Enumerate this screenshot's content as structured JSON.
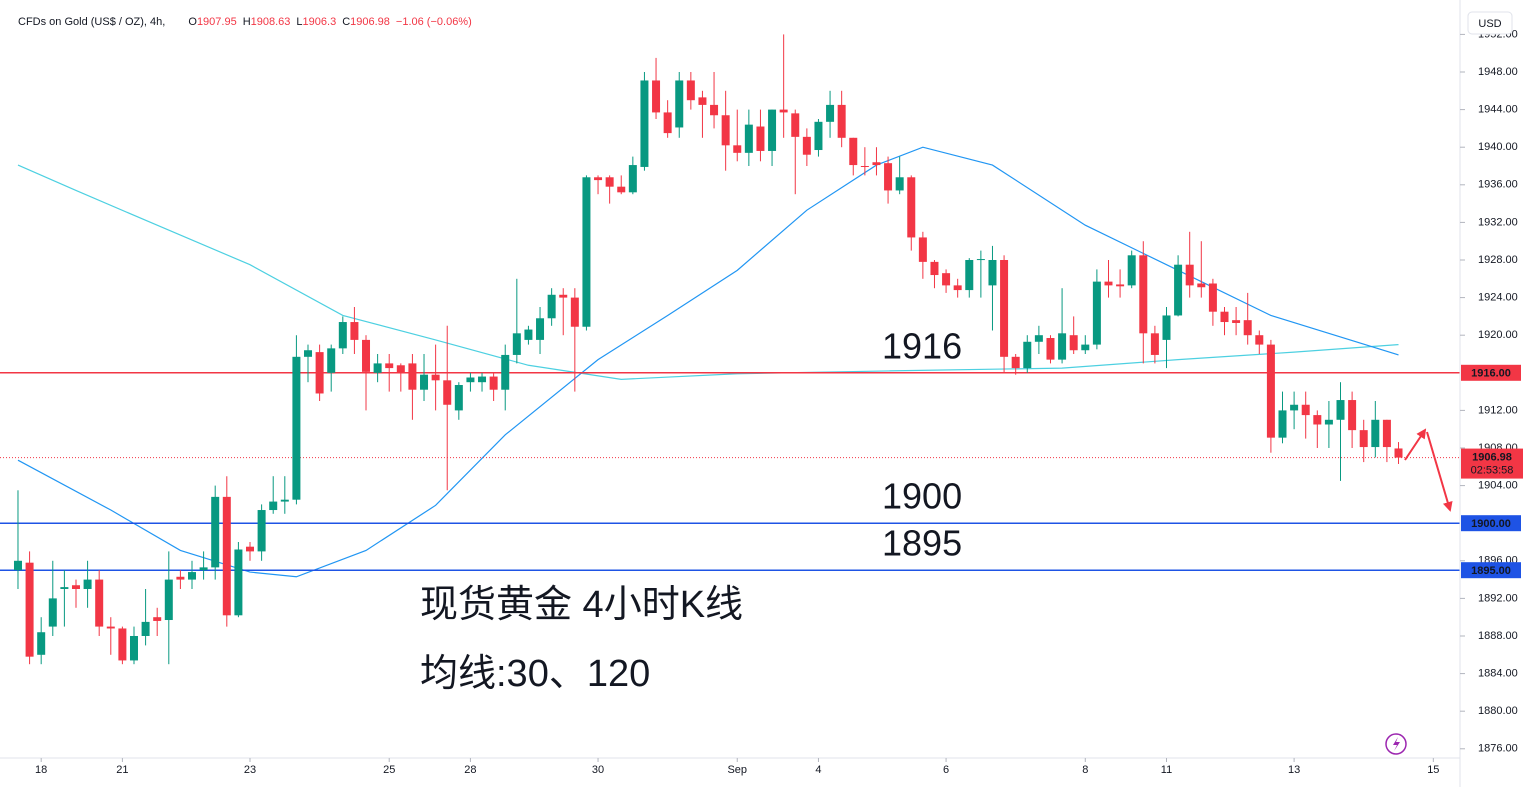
{
  "chart_data": {
    "type": "candlestick",
    "symbol": "CFDs on Gold (US$ / OZ), 4h, ",
    "ohlc_keys": [
      "O",
      "H",
      "L",
      "C"
    ],
    "change": "−1.06 (−0.06%)",
    "currency": "USD",
    "up_color": "#089981",
    "down_color": "#f23645",
    "open": [
      1895,
      1895.8,
      1886,
      1889,
      1893,
      1893.4,
      1893,
      1894,
      1889,
      1888.8,
      1885.4,
      1888,
      1890,
      1889.7,
      1894.3,
      1894,
      1895,
      1895.3,
      1902.8,
      1890.2,
      1897.5,
      1897,
      1901.4,
      1902.3,
      1902.5,
      1917.7,
      1918.2,
      1916,
      1918.6,
      1921.4,
      1919.5,
      1916,
      1917,
      1916.8,
      1917,
      1914.2,
      1915.8,
      1915.2,
      1912,
      1915,
      1915,
      1915.6,
      1914.2,
      1917.9,
      1919.5,
      1919.5,
      1921.8,
      1924.3,
      1924,
      1920.9,
      1936.8,
      1936.8,
      1935.8,
      1935.2,
      1937.9,
      1947.1,
      1943.7,
      1942.1,
      1947.1,
      1945.3,
      1944.5,
      1943.4,
      1940.2,
      1939.4,
      1942.2,
      1939.6,
      1944,
      1943.6,
      1941.1,
      1939.7,
      1942.7,
      1944.5,
      1941,
      1938,
      1938.4,
      1938.3,
      1935.4,
      1936.8,
      1930.4,
      1927.8,
      1926.6,
      1925.3,
      1924.8,
      1928,
      1925.3,
      1928,
      1917.7,
      1916.5,
      1919.3,
      1919.7,
      1917.4,
      1920,
      1918.4,
      1919,
      1925.7,
      1925.4,
      1925.3,
      1928.5,
      1920.2,
      1919.5,
      1922.1,
      1927.5,
      1925.5,
      1925.5,
      1922.5,
      1921.6,
      1921.6,
      1920,
      1919,
      1909.1,
      1912,
      1912.6,
      1911.5,
      1910.5,
      1911,
      1913.1,
      1909.9,
      1908.1,
      1911,
      1907.95
    ],
    "high": [
      1903.5,
      1897,
      1890,
      1896,
      1895,
      1894,
      1896,
      1895,
      1890,
      1889,
      1889,
      1893,
      1891,
      1897,
      1895,
      1896,
      1897,
      1904,
      1905,
      1898,
      1898,
      1902,
      1905,
      1905,
      1920,
      1919,
      1919,
      1919,
      1922,
      1923,
      1920,
      1918,
      1918,
      1917,
      1918,
      1918,
      1919,
      1921,
      1915,
      1916,
      1916,
      1916,
      1919,
      1926,
      1921,
      1923,
      1925,
      1925,
      1925,
      1937,
      1937,
      1937,
      1937,
      1939,
      1948,
      1949.5,
      1945,
      1948,
      1948,
      1946,
      1948,
      1946,
      1944,
      1944,
      1944,
      1944,
      1952,
      1944,
      1942,
      1943,
      1946,
      1946,
      1941,
      1940,
      1940,
      1939,
      1939,
      1937,
      1931,
      1928,
      1927,
      1926,
      1928.2,
      1929,
      1929.5,
      1928.5,
      1918,
      1920,
      1921,
      1920,
      1925,
      1922,
      1920,
      1927,
      1928,
      1927,
      1929,
      1930,
      1921,
      1923,
      1928.5,
      1931,
      1930,
      1926,
      1923,
      1923,
      1924.5,
      1920.5,
      1919.5,
      1914,
      1914,
      1914,
      1912,
      1913,
      1915,
      1914,
      1911,
      1913,
      1911,
      1908.63
    ],
    "low": [
      1893,
      1885,
      1885,
      1888,
      1889,
      1891,
      1891,
      1888,
      1886,
      1885,
      1885,
      1887,
      1888,
      1885,
      1893,
      1893,
      1894,
      1894,
      1889,
      1890,
      1896,
      1896,
      1901,
      1901,
      1902,
      1915,
      1913,
      1914,
      1918,
      1918,
      1912,
      1915,
      1914,
      1914,
      1911,
      1913,
      1912,
      1903.5,
      1911,
      1914,
      1914,
      1913,
      1912,
      1917,
      1919,
      1918,
      1921,
      1920,
      1914,
      1920.5,
      1935,
      1934,
      1935,
      1935,
      1937.5,
      1943,
      1941,
      1941,
      1944,
      1941,
      1942,
      1937.5,
      1938.5,
      1938,
      1938.5,
      1938,
      1941,
      1935,
      1938,
      1939,
      1941,
      1940,
      1937,
      1937,
      1937,
      1934,
      1935,
      1929,
      1926,
      1925,
      1924.5,
      1924,
      1924,
      1924,
      1920.5,
      1916,
      1915.8,
      1916,
      1918,
      1917,
      1917,
      1918,
      1918,
      1918.5,
      1924,
      1924,
      1925,
      1917,
      1917,
      1916.5,
      1922,
      1924,
      1924,
      1921,
      1920,
      1920,
      1919,
      1918,
      1907.5,
      1908.5,
      1910,
      1909,
      1908,
      1908,
      1904.5,
      1908,
      1906.5,
      1907,
      1906.5,
      1906.3
    ],
    "close": [
      1896,
      1885.8,
      1888.4,
      1892,
      1893.2,
      1893,
      1894,
      1889,
      1888.8,
      1885.4,
      1888,
      1889.5,
      1889.6,
      1894,
      1894,
      1894.8,
      1895.3,
      1902.8,
      1890.2,
      1897.2,
      1897,
      1901.4,
      1902.3,
      1902.5,
      1917.7,
      1918.4,
      1913.8,
      1918.6,
      1921.4,
      1919.5,
      1916.1,
      1917,
      1916.5,
      1916,
      1914.2,
      1915.8,
      1915.2,
      1912.6,
      1914.7,
      1915.5,
      1915.6,
      1914.2,
      1917.9,
      1920.2,
      1920.6,
      1921.8,
      1924.3,
      1924,
      1920.9,
      1936.8,
      1936.5,
      1935.8,
      1935.2,
      1938.1,
      1947.1,
      1943.7,
      1941.5,
      1947.1,
      1945,
      1944.5,
      1943.4,
      1940.2,
      1939.4,
      1942.4,
      1939.6,
      1944,
      1943.7,
      1941.1,
      1939.2,
      1942.7,
      1944.5,
      1941,
      1938.1,
      1937.9,
      1938.1,
      1935.4,
      1936.8,
      1930.4,
      1927.8,
      1926.4,
      1925.3,
      1924.8,
      1928,
      1928.1,
      1928,
      1917.7,
      1916.5,
      1919.3,
      1920,
      1917.4,
      1920.2,
      1918.4,
      1919,
      1925.7,
      1925.3,
      1925.2,
      1928.5,
      1920.2,
      1917.9,
      1922.1,
      1927.5,
      1925.3,
      1925.1,
      1922.5,
      1921.4,
      1921.3,
      1920,
      1919,
      1909.1,
      1912,
      1912.6,
      1911.5,
      1910.5,
      1911,
      1913.1,
      1909.9,
      1908.1,
      1911,
      1908.1,
      1906.98
    ],
    "series": [
      {
        "color": "#4dd0e1",
        "x": [
          0,
          5,
          12,
          20,
          28,
          36,
          44,
          52,
          62,
          75,
          90,
          100,
          110,
          119
        ],
        "values": [
          1938.1,
          1935.4,
          1931.7,
          1927.5,
          1922.1,
          1919.5,
          1916.8,
          1915.3,
          1915.9,
          1916.2,
          1916.5,
          1917.4,
          1918.2,
          1919
        ]
      },
      {
        "color": "#2196f3",
        "x": [
          0,
          8,
          14,
          20,
          24,
          30,
          36,
          42,
          50,
          56,
          62,
          68,
          74,
          78,
          84,
          92,
          100,
          108,
          119
        ],
        "values": [
          1906.7,
          1901.4,
          1897.1,
          1894.8,
          1894.3,
          1897.1,
          1901.9,
          1909.4,
          1917.4,
          1922.1,
          1926.9,
          1933.3,
          1938.1,
          1940,
          1938.1,
          1931.7,
          1926.9,
          1922.1,
          1917.9
        ]
      }
    ],
    "levels": [
      {
        "value": 1916,
        "label": "1916.00",
        "annotation": "1916",
        "color": "#f23645"
      },
      {
        "value": 1900,
        "label": "1900.00",
        "annotation": "1900",
        "color": "#1e53e5"
      },
      {
        "value": 1895,
        "label": "1895.00",
        "annotation": "1895",
        "color": "#1e53e5"
      }
    ],
    "annotation_color": "#f23645",
    "last_price": {
      "value": 1906.98,
      "countdown": "02:53:58",
      "color": "#f23645"
    },
    "annotations": [
      "现货黄金 4小时K线",
      "均线:30、120"
    ],
    "xlim": [
      -1.55,
      124.3
    ],
    "ylim": [
      1875.02,
      1955.66
    ],
    "xticks": [
      {
        "value": 2,
        "label": "18"
      },
      {
        "value": 9,
        "label": "21"
      },
      {
        "value": 20,
        "label": "23"
      },
      {
        "value": 32,
        "label": "25"
      },
      {
        "value": 39,
        "label": "28"
      },
      {
        "value": 50,
        "label": "30"
      },
      {
        "value": 62,
        "label": "Sep"
      },
      {
        "value": 69,
        "label": "4"
      },
      {
        "value": 80,
        "label": "6"
      },
      {
        "value": 92,
        "label": "8"
      },
      {
        "value": 99,
        "label": "11"
      },
      {
        "value": 110,
        "label": "13"
      },
      {
        "value": 122,
        "label": "15"
      }
    ],
    "yticks": [
      {
        "value": 1876,
        "label": "1876.00"
      },
      {
        "value": 1880,
        "label": "1880.00"
      },
      {
        "value": 1884,
        "label": "1884.00"
      },
      {
        "value": 1888,
        "label": "1888.00"
      },
      {
        "value": 1892,
        "label": "1892.00"
      },
      {
        "value": 1896,
        "label": "1896.00"
      },
      {
        "value": 1904,
        "label": "1904.00"
      },
      {
        "value": 1908,
        "label": "1908.00"
      },
      {
        "value": 1912,
        "label": "1912.00"
      },
      {
        "value": 1920,
        "label": "1920.00"
      },
      {
        "value": 1924,
        "label": "1924.00"
      },
      {
        "value": 1928,
        "label": "1928.00"
      },
      {
        "value": 1932,
        "label": "1932.00"
      },
      {
        "value": 1936,
        "label": "1936.00"
      },
      {
        "value": 1940,
        "label": "1940.00"
      },
      {
        "value": 1944,
        "label": "1944.00"
      },
      {
        "value": 1948,
        "label": "1948.00"
      },
      {
        "value": 1952,
        "label": "1952.00"
      }
    ]
  }
}
